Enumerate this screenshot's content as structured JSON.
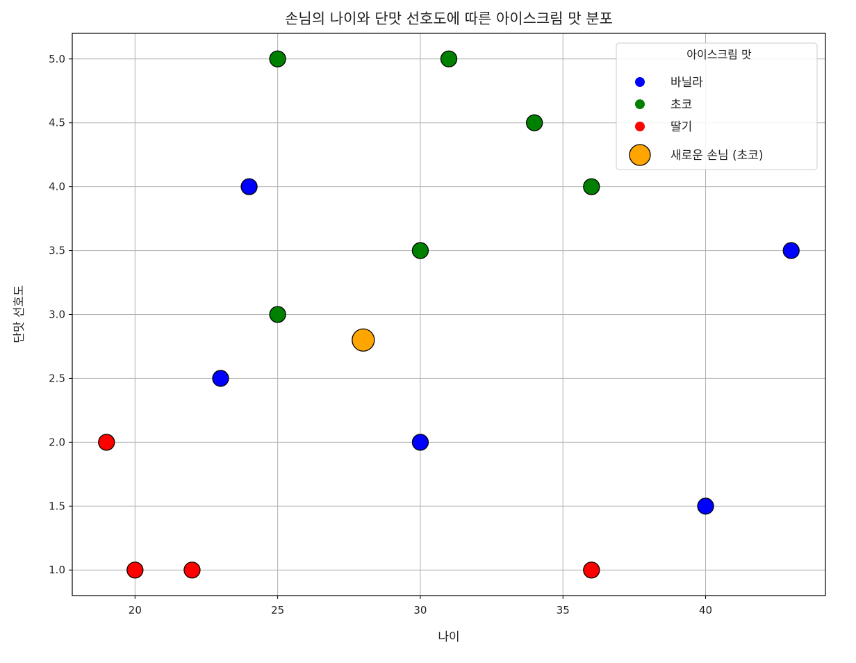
{
  "chart_data": {
    "type": "scatter",
    "title": "손님의 나이와 단맛 선호도에 따른 아이스크림 맛 분포",
    "xlabel": "나이",
    "ylabel": "단맛 선호도",
    "xlim": [
      17.8,
      44.2
    ],
    "ylim": [
      0.8,
      5.2
    ],
    "xticks": [
      20,
      25,
      30,
      35,
      40
    ],
    "yticks": [
      1.0,
      1.5,
      2.0,
      2.5,
      3.0,
      3.5,
      4.0,
      4.5,
      5.0
    ],
    "grid": true,
    "legend": {
      "title": "아이스크림 맛",
      "placement": "top-right"
    },
    "series": [
      {
        "name": "바닐라",
        "color": "#0000ff",
        "points": [
          [
            24,
            4.0
          ],
          [
            23,
            2.5
          ],
          [
            30,
            2.0
          ],
          [
            40,
            1.5
          ],
          [
            43,
            3.5
          ]
        ]
      },
      {
        "name": "초코",
        "color": "#008000",
        "points": [
          [
            25,
            5.0
          ],
          [
            31,
            5.0
          ],
          [
            34,
            4.5
          ],
          [
            36,
            4.0
          ],
          [
            30,
            3.5
          ],
          [
            25,
            3.0
          ]
        ]
      },
      {
        "name": "딸기",
        "color": "#ff0000",
        "points": [
          [
            19,
            2.0
          ],
          [
            20,
            1.0
          ],
          [
            22,
            1.0
          ],
          [
            36,
            1.0
          ]
        ]
      },
      {
        "name": "새로운 손님 (초코)",
        "color": "#ffa500",
        "points": [
          [
            28,
            2.8
          ]
        ],
        "large": true
      }
    ]
  }
}
